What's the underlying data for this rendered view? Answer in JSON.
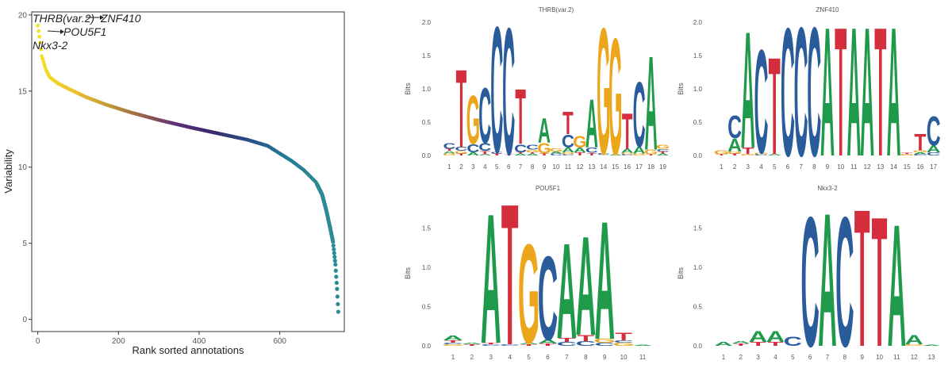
{
  "chart_data": [
    {
      "type": "scatter",
      "xlabel": "Rank sorted annotations",
      "ylabel": "Variability",
      "xlim": [
        -15,
        760
      ],
      "ylim": [
        -0.8,
        20.2
      ],
      "xticks": [
        0,
        200,
        400,
        600
      ],
      "yticks": [
        0,
        5,
        10,
        15,
        20
      ],
      "color_scale": [
        "#f2e21e",
        "#f0c22e",
        "#c59c37",
        "#99634a",
        "#5b2d7a",
        "#3b2a6c",
        "#2a4f8a",
        "#257a92",
        "#2c8a94"
      ],
      "curve_anchors": {
        "rank": [
          0,
          5,
          10,
          20,
          30,
          50,
          80,
          120,
          170,
          230,
          300,
          380,
          450,
          520,
          570,
          600,
          630,
          660,
          690,
          705,
          715,
          725,
          732,
          738,
          742,
          745
        ],
        "variability": [
          19.3,
          18.4,
          17.3,
          16.4,
          15.9,
          15.5,
          15.1,
          14.6,
          14.1,
          13.6,
          13.1,
          12.6,
          12.2,
          11.8,
          11.4,
          10.9,
          10.4,
          9.8,
          9.0,
          8.2,
          7.2,
          6.0,
          5.1,
          3.6,
          2.0,
          0.5
        ]
      },
      "labeled_points": [
        {
          "label": "THRB(var.2)",
          "rank": 0,
          "variability": 19.5
        },
        {
          "label": "ZNF410",
          "rank": 1,
          "variability": 19.4
        },
        {
          "label": "POU5F1",
          "rank": 2,
          "variability": 19.2
        },
        {
          "label": "Nkx3-2",
          "rank": 3,
          "variability": 19.1
        }
      ]
    },
    {
      "type": "sequence-logo",
      "title": "THRB(var.2)",
      "ylabel": "Bits",
      "ylim": [
        0,
        2.0
      ],
      "yticks": [
        "0.0",
        "0.5",
        "1.0",
        "1.5",
        "2.0"
      ],
      "positions": [
        [
          [
            "G",
            0.03
          ],
          [
            "A",
            0.04
          ],
          [
            "T",
            0.03
          ],
          [
            "C",
            0.09
          ]
        ],
        [
          [
            "T",
            0.03
          ],
          [
            "G",
            0.04
          ],
          [
            "C",
            0.06
          ],
          [
            "T",
            1.2
          ]
        ],
        [
          [
            "A",
            0.05
          ],
          [
            "C",
            0.13
          ],
          [
            "G",
            0.75
          ]
        ],
        [
          [
            "A",
            0.02
          ],
          [
            "T",
            0.05
          ],
          [
            "C",
            0.12
          ],
          [
            "C",
            0.85
          ]
        ],
        [
          [
            "T",
            0.03
          ],
          [
            "C",
            0.02
          ],
          [
            "C",
            1.95
          ]
        ],
        [
          [
            "T",
            0.02
          ],
          [
            "C",
            1.96
          ]
        ],
        [
          [
            "A",
            0.03
          ],
          [
            "T",
            0.02
          ],
          [
            "C",
            0.12
          ],
          [
            "T",
            0.85
          ]
        ],
        [
          [
            "A",
            0.03
          ],
          [
            "T",
            0.02
          ],
          [
            "G",
            0.04
          ],
          [
            "C",
            0.07
          ]
        ],
        [
          [
            "T",
            0.03
          ],
          [
            "G",
            0.16
          ],
          [
            "A",
            0.38
          ]
        ],
        [
          [
            "C",
            0.03
          ],
          [
            "A",
            0.03
          ],
          [
            "G",
            0.05
          ]
        ],
        [
          [
            "C",
            0.02
          ],
          [
            "G",
            0.03
          ],
          [
            "A",
            0.07
          ],
          [
            "C",
            0.2
          ],
          [
            "T",
            0.35
          ]
        ],
        [
          [
            "T",
            0.05
          ],
          [
            "A",
            0.07
          ],
          [
            "G",
            0.18
          ]
        ],
        [
          [
            "T",
            0.04
          ],
          [
            "C",
            0.08
          ],
          [
            "A",
            0.75
          ]
        ],
        [
          [
            "A",
            0.01
          ],
          [
            "C",
            0.02
          ],
          [
            "G",
            1.95
          ]
        ],
        [
          [
            "A",
            0.02
          ],
          [
            "G",
            1.8
          ]
        ],
        [
          [
            "C",
            0.02
          ],
          [
            "G",
            0.02
          ],
          [
            "A",
            0.06
          ],
          [
            "T",
            0.55
          ]
        ],
        [
          [
            "G",
            0.03
          ],
          [
            "A",
            0.1
          ],
          [
            "C",
            1.0
          ]
        ],
        [
          [
            "T",
            0.02
          ],
          [
            "G",
            0.07
          ],
          [
            "A",
            1.45
          ]
        ],
        [
          [
            "A",
            0.03
          ],
          [
            "T",
            0.03
          ],
          [
            "C",
            0.04
          ],
          [
            "G",
            0.06
          ]
        ]
      ]
    },
    {
      "type": "sequence-logo",
      "title": "ZNF410",
      "ylabel": "Bits",
      "ylim": [
        0,
        2.0
      ],
      "yticks": [
        "0.0",
        "0.5",
        "1.0",
        "1.5",
        "2.0"
      ],
      "positions": [
        [
          [
            "T",
            0.02
          ],
          [
            "G",
            0.06
          ]
        ],
        [
          [
            "T",
            0.03
          ],
          [
            "G",
            0.03
          ],
          [
            "A",
            0.2
          ],
          [
            "C",
            0.35
          ]
        ],
        [
          [
            "G",
            0.02
          ],
          [
            "T",
            0.1
          ],
          [
            "A",
            1.8
          ]
        ],
        [
          [
            "C",
            0.02
          ],
          [
            "G",
            0.02
          ],
          [
            "C",
            1.6
          ]
        ],
        [
          [
            "A",
            0.02
          ],
          [
            "T",
            1.5
          ]
        ],
        [
          [
            "C",
            1.98
          ]
        ],
        [
          [
            "C",
            1.99
          ]
        ],
        [
          [
            "C",
            1.99
          ]
        ],
        [
          [
            "A",
            1.99
          ]
        ],
        [
          [
            "T",
            1.99
          ]
        ],
        [
          [
            "A",
            1.99
          ]
        ],
        [
          [
            "A",
            1.99
          ]
        ],
        [
          [
            "T",
            1.99
          ]
        ],
        [
          [
            "A",
            1.99
          ]
        ],
        [
          [
            "G",
            0.02
          ],
          [
            "T",
            0.02
          ]
        ],
        [
          [
            "C",
            0.02
          ],
          [
            "A",
            0.03
          ],
          [
            "G",
            0.03
          ],
          [
            "T",
            0.25
          ]
        ],
        [
          [
            "C",
            0.05
          ],
          [
            "A",
            0.1
          ],
          [
            "C",
            0.45
          ]
        ]
      ]
    },
    {
      "type": "sequence-logo",
      "title": "POU5F1",
      "ylabel": "Bits",
      "ylim": [
        0,
        1.85
      ],
      "yticks": [
        "0.0",
        "0.5",
        "1.0",
        "1.5"
      ],
      "positions": [
        [
          [
            "G",
            0.02
          ],
          [
            "C",
            0.02
          ],
          [
            "T",
            0.03
          ],
          [
            "A",
            0.06
          ]
        ],
        [
          [
            "T",
            0.02
          ],
          [
            "A",
            0.02
          ]
        ],
        [
          [
            "C",
            0.02
          ],
          [
            "T",
            0.02
          ],
          [
            "A",
            1.7
          ]
        ],
        [
          [
            "C",
            0.02
          ],
          [
            "T",
            1.85
          ]
        ],
        [
          [
            "T",
            0.02
          ],
          [
            "A",
            0.02
          ],
          [
            "G",
            1.3
          ]
        ],
        [
          [
            "T",
            0.03
          ],
          [
            "A",
            0.05
          ],
          [
            "C",
            1.1
          ]
        ],
        [
          [
            "C",
            0.05
          ],
          [
            "T",
            0.05
          ],
          [
            "A",
            1.25
          ]
        ],
        [
          [
            "C",
            0.06
          ],
          [
            "T",
            0.08
          ],
          [
            "A",
            1.3
          ]
        ],
        [
          [
            "C",
            0.04
          ],
          [
            "G",
            0.05
          ],
          [
            "A",
            1.55
          ]
        ],
        [
          [
            "G",
            0.04
          ],
          [
            "C",
            0.03
          ],
          [
            "T",
            0.1
          ]
        ],
        [
          [
            "A",
            0.01
          ]
        ]
      ]
    },
    {
      "type": "sequence-logo",
      "title": "Nkx3-2",
      "ylabel": "Bits",
      "ylim": [
        0,
        1.85
      ],
      "yticks": [
        "0.0",
        "0.5",
        "1.0",
        "1.5"
      ],
      "positions": [
        [
          [
            "A",
            0.05
          ]
        ],
        [
          [
            "T",
            0.03
          ],
          [
            "A",
            0.03
          ]
        ],
        [
          [
            "T",
            0.05
          ],
          [
            "A",
            0.14
          ]
        ],
        [
          [
            "T",
            0.05
          ],
          [
            "A",
            0.14
          ]
        ],
        [
          [
            "C",
            0.12
          ]
        ],
        [
          [
            "C",
            1.7
          ]
        ],
        [
          [
            "A",
            1.75
          ]
        ],
        [
          [
            "C",
            1.7
          ]
        ],
        [
          [
            "T",
            1.8
          ]
        ],
        [
          [
            "T",
            1.7
          ]
        ],
        [
          [
            "A",
            1.6
          ]
        ],
        [
          [
            "G",
            0.02
          ],
          [
            "A",
            0.12
          ]
        ],
        [
          [
            "A",
            0.01
          ]
        ]
      ]
    }
  ],
  "colors": {
    "A": "#1f9a4a",
    "C": "#2a5c9c",
    "G": "#eca61c",
    "T": "#d42d3c"
  }
}
